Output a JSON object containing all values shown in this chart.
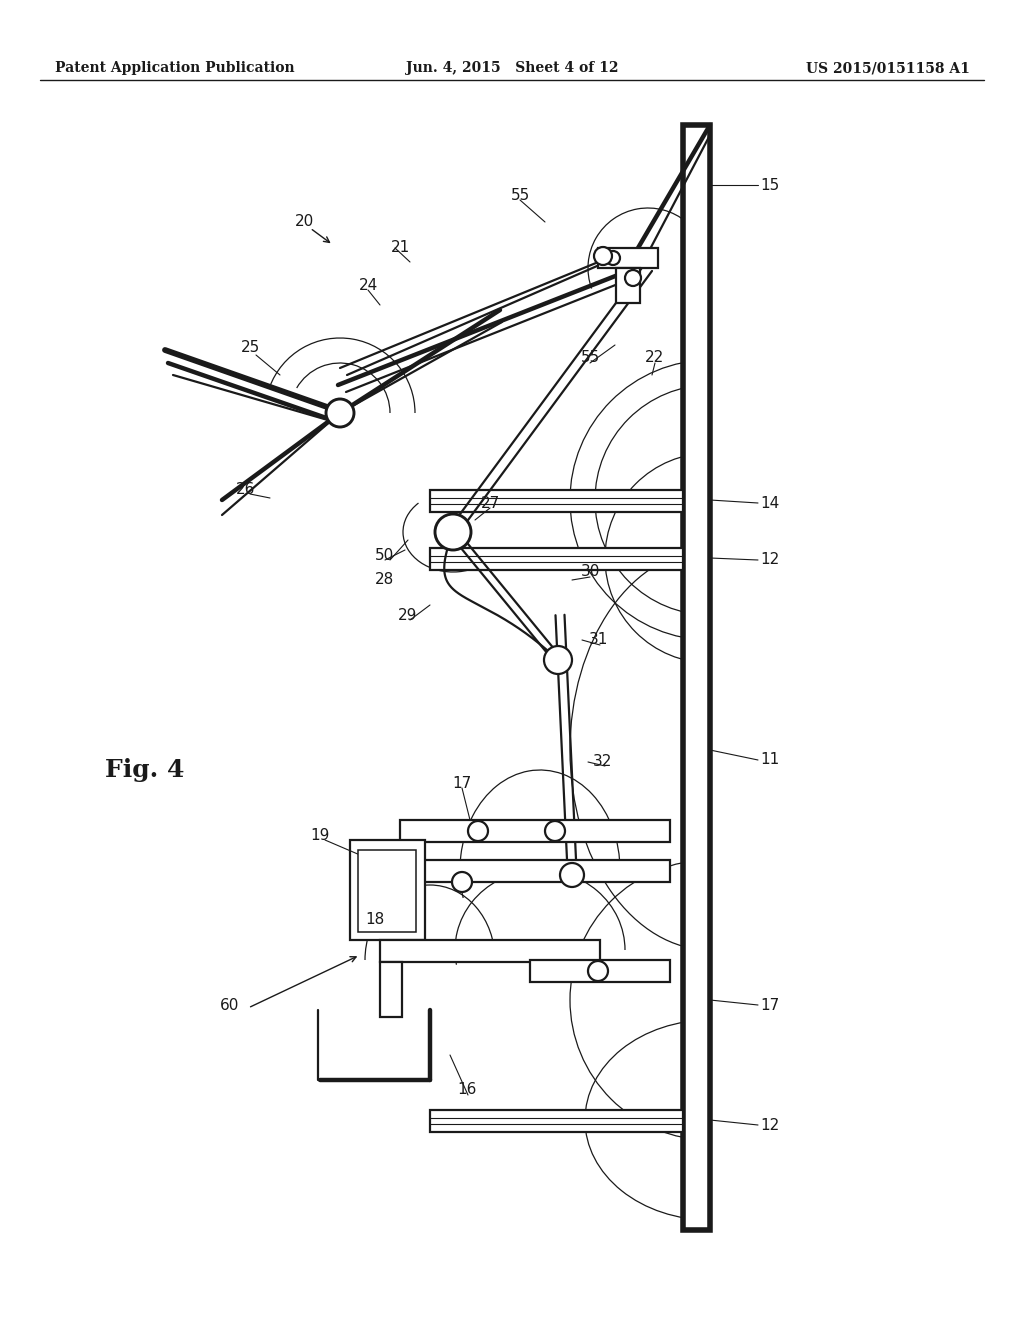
{
  "bg_color": "#ffffff",
  "line_color": "#1a1a1a",
  "header_left": "Patent Application Publication",
  "header_mid": "Jun. 4, 2015   Sheet 4 of 12",
  "header_right": "US 2015/0151158 A1",
  "fig_label": "Fig. 4",
  "lw_main": 1.6,
  "lw_thick": 3.2,
  "lw_rail": 4.0
}
